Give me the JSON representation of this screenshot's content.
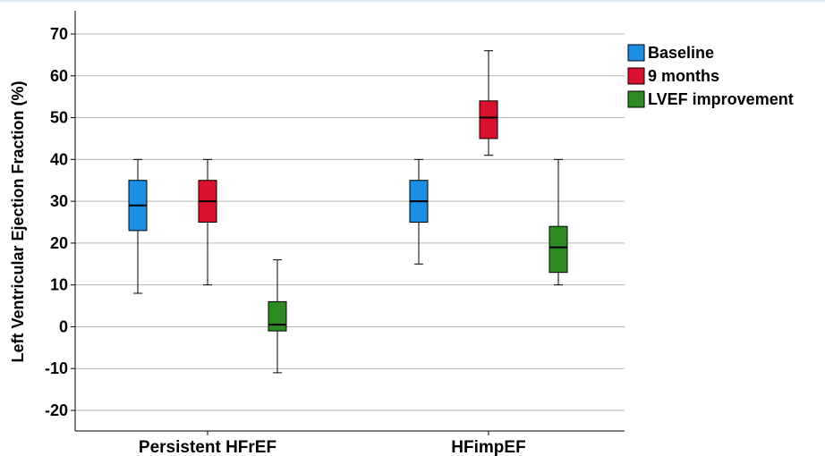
{
  "chart_data": {
    "type": "box",
    "ylabel": "Left Ventricular Ejection Fraction (%)",
    "xlabel": "",
    "ylim": [
      -25,
      75
    ],
    "yticks": [
      -20,
      -10,
      0,
      10,
      20,
      30,
      40,
      50,
      60,
      70
    ],
    "grid": true,
    "legend_position": "top-right",
    "categories": [
      "Persistent HFrEF",
      "HFimpEF"
    ],
    "series": [
      {
        "name": "Baseline",
        "color": "#1a8fe3",
        "boxes": [
          {
            "min": 8,
            "q1": 23,
            "median": 29,
            "q3": 35,
            "max": 40
          },
          {
            "min": 15,
            "q1": 25,
            "median": 30,
            "q3": 35,
            "max": 40
          }
        ]
      },
      {
        "name": "9 months",
        "color": "#d9112e",
        "boxes": [
          {
            "min": 10,
            "q1": 25,
            "median": 30,
            "q3": 35,
            "max": 40
          },
          {
            "min": 41,
            "q1": 45,
            "median": 50,
            "q3": 54,
            "max": 66
          }
        ]
      },
      {
        "name": "LVEF improvement",
        "color": "#2e8b24",
        "boxes": [
          {
            "min": -11,
            "q1": -1,
            "median": 0.5,
            "q3": 6,
            "max": 16
          },
          {
            "min": 10,
            "q1": 13,
            "median": 19,
            "q3": 24,
            "max": 40
          }
        ]
      }
    ]
  }
}
